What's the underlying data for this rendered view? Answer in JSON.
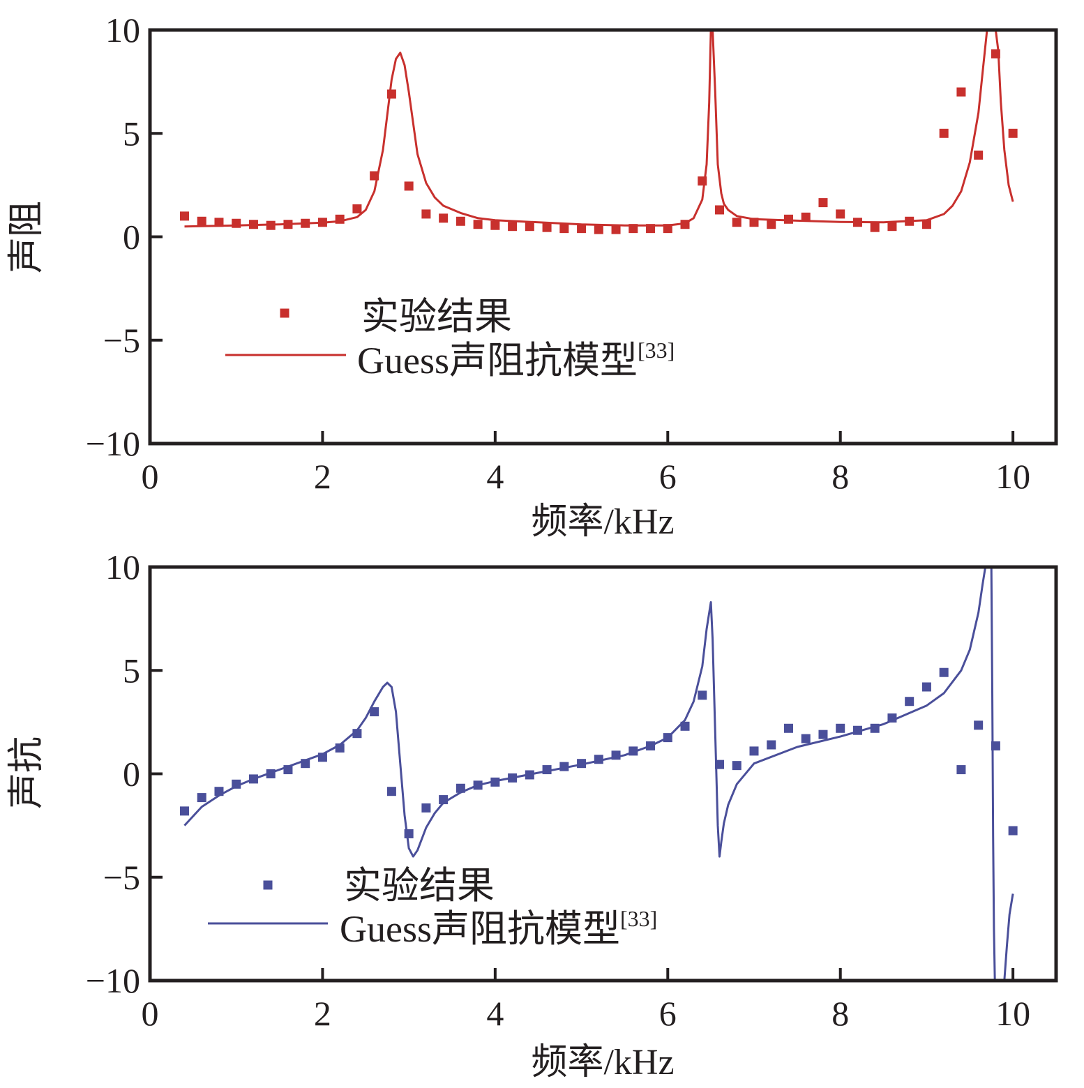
{
  "chart_data": [
    {
      "type": "scatter",
      "title": "",
      "xlabel": "频率/kHz",
      "ylabel": "声阻",
      "xlim": [
        0,
        10.5
      ],
      "ylim": [
        -10,
        10
      ],
      "xticks": [
        "0",
        "2",
        "4",
        "6",
        "8",
        "10"
      ],
      "yticks": [
        "−10",
        "−5",
        "0",
        "5",
        "10"
      ],
      "grid": false,
      "legend_position": "lower-left",
      "color": "#c8302d",
      "series": [
        {
          "name": "实验结果",
          "kind": "markers",
          "x": [
            0.4,
            0.6,
            0.8,
            1.0,
            1.2,
            1.4,
            1.6,
            1.8,
            2.0,
            2.2,
            2.4,
            2.6,
            2.8,
            3.0,
            3.2,
            3.4,
            3.6,
            3.8,
            4.0,
            4.2,
            4.4,
            4.6,
            4.8,
            5.0,
            5.2,
            5.4,
            5.6,
            5.8,
            6.0,
            6.2,
            6.4,
            6.6,
            6.8,
            7.0,
            7.2,
            7.4,
            7.6,
            7.8,
            8.0,
            8.2,
            8.4,
            8.6,
            8.8,
            9.0,
            9.2,
            9.4,
            9.6,
            9.8,
            10.0
          ],
          "y": [
            1.0,
            0.75,
            0.7,
            0.65,
            0.6,
            0.55,
            0.6,
            0.65,
            0.7,
            0.85,
            1.35,
            2.95,
            6.9,
            2.45,
            1.1,
            0.9,
            0.75,
            0.6,
            0.55,
            0.5,
            0.5,
            0.45,
            0.4,
            0.4,
            0.35,
            0.35,
            0.4,
            0.4,
            0.4,
            0.6,
            2.7,
            1.3,
            0.7,
            0.7,
            0.6,
            0.85,
            0.95,
            1.65,
            1.1,
            0.7,
            0.45,
            0.5,
            0.75,
            0.6,
            5.0,
            7.0,
            3.95,
            8.85,
            5.0
          ]
        },
        {
          "name": "Guess声阻抗模型",
          "citation": "[33]",
          "kind": "line",
          "x": [
            0.4,
            1.0,
            1.5,
            2.0,
            2.2,
            2.4,
            2.5,
            2.6,
            2.7,
            2.8,
            2.85,
            2.9,
            2.95,
            3.0,
            3.05,
            3.1,
            3.2,
            3.3,
            3.4,
            3.6,
            3.8,
            4.0,
            5.0,
            5.5,
            6.0,
            6.2,
            6.3,
            6.4,
            6.45,
            6.48,
            6.5,
            6.52,
            6.55,
            6.58,
            6.62,
            6.65,
            6.7,
            6.8,
            7.0,
            7.5,
            8.0,
            8.5,
            9.0,
            9.2,
            9.3,
            9.4,
            9.5,
            9.6,
            9.65,
            9.7,
            9.73,
            9.76,
            9.8,
            9.83,
            9.86,
            9.9,
            9.95,
            10.0
          ],
          "y": [
            0.5,
            0.55,
            0.6,
            0.68,
            0.75,
            0.95,
            1.3,
            2.2,
            4.2,
            7.6,
            8.6,
            8.9,
            8.3,
            7.0,
            5.5,
            4.0,
            2.6,
            1.9,
            1.5,
            1.15,
            0.9,
            0.8,
            0.6,
            0.55,
            0.55,
            0.65,
            0.9,
            1.8,
            3.5,
            6.5,
            10.0,
            10.0,
            7.0,
            3.5,
            2.1,
            1.6,
            1.3,
            1.0,
            0.85,
            0.78,
            0.72,
            0.7,
            0.8,
            1.1,
            1.5,
            2.2,
            3.6,
            6.0,
            8.0,
            10.0,
            10.0,
            10.0,
            10.0,
            9.0,
            6.5,
            4.2,
            2.5,
            1.7
          ]
        }
      ]
    },
    {
      "type": "scatter",
      "title": "",
      "xlabel": "频率/kHz",
      "ylabel": "声抗",
      "xlim": [
        0,
        10.5
      ],
      "ylim": [
        -10,
        10
      ],
      "xticks": [
        "0",
        "2",
        "4",
        "6",
        "8",
        "10"
      ],
      "yticks": [
        "−10",
        "−5",
        "0",
        "5",
        "10"
      ],
      "grid": false,
      "legend_position": "lower-left",
      "color": "#4a4f9a",
      "series": [
        {
          "name": "实验结果",
          "kind": "markers",
          "x": [
            0.4,
            0.6,
            0.8,
            1.0,
            1.2,
            1.4,
            1.6,
            1.8,
            2.0,
            2.2,
            2.4,
            2.6,
            2.8,
            3.0,
            3.2,
            3.4,
            3.6,
            3.8,
            4.0,
            4.2,
            4.4,
            4.6,
            4.8,
            5.0,
            5.2,
            5.4,
            5.6,
            5.8,
            6.0,
            6.2,
            6.4,
            6.6,
            6.8,
            7.0,
            7.2,
            7.4,
            7.6,
            7.8,
            8.0,
            8.2,
            8.4,
            8.6,
            8.8,
            9.0,
            9.2,
            9.4,
            9.6,
            9.8,
            10.0
          ],
          "y": [
            -1.8,
            -1.15,
            -0.85,
            -0.5,
            -0.25,
            0.0,
            0.2,
            0.5,
            0.8,
            1.25,
            1.95,
            3.0,
            -0.85,
            -2.9,
            -1.65,
            -1.25,
            -0.7,
            -0.55,
            -0.4,
            -0.2,
            -0.05,
            0.2,
            0.35,
            0.5,
            0.7,
            0.9,
            1.1,
            1.35,
            1.75,
            2.3,
            3.8,
            0.45,
            0.4,
            1.1,
            1.4,
            2.2,
            1.7,
            1.9,
            2.2,
            2.1,
            2.2,
            2.7,
            3.5,
            4.2,
            4.9,
            0.2,
            2.35,
            1.35,
            -2.75
          ]
        },
        {
          "name": "Guess声阻抗模型",
          "citation": "[33]",
          "kind": "line",
          "segments": [
            {
              "x": [
                0.4,
                0.6,
                0.8,
                1.0,
                1.2,
                1.4,
                1.6,
                1.8,
                2.0,
                2.2,
                2.4,
                2.5,
                2.6,
                2.7,
                2.75,
                2.8,
                2.85,
                2.9,
                2.95,
                3.0,
                3.05,
                3.1,
                3.2,
                3.3,
                3.4,
                3.6,
                3.8,
                4.0,
                4.5,
                5.0,
                5.5,
                5.8,
                6.0,
                6.2,
                6.3,
                6.4,
                6.45,
                6.5,
                6.52,
                6.55,
                6.58,
                6.6,
                6.62,
                6.65,
                6.7,
                6.8,
                7.0,
                7.5,
                8.0,
                8.5,
                9.0,
                9.2,
                9.4,
                9.5,
                9.6,
                9.65,
                9.68
              ],
              "y": [
                -2.5,
                -1.6,
                -1.05,
                -0.6,
                -0.25,
                0.05,
                0.35,
                0.65,
                0.95,
                1.4,
                2.1,
                2.7,
                3.5,
                4.2,
                4.4,
                4.2,
                3.0,
                0.5,
                -2.0,
                -3.6,
                -4.0,
                -3.7,
                -2.6,
                -1.9,
                -1.4,
                -0.9,
                -0.55,
                -0.35,
                0.05,
                0.45,
                0.9,
                1.35,
                1.75,
                2.6,
                3.5,
                5.2,
                7.0,
                8.3,
                6.5,
                2.0,
                -2.5,
                -4.0,
                -3.3,
                -2.4,
                -1.5,
                -0.5,
                0.5,
                1.3,
                1.8,
                2.4,
                3.3,
                3.9,
                5.0,
                6.0,
                7.8,
                9.2,
                10.0
              ]
            },
            {
              "x": [
                9.75,
                9.76,
                9.77,
                9.78,
                9.79
              ],
              "y": [
                10.0,
                4.0,
                -3.0,
                -7.5,
                -10.0
              ]
            },
            {
              "x": [
                9.9,
                9.93,
                9.96,
                10.0
              ],
              "y": [
                -10.0,
                -8.3,
                -6.8,
                -5.8
              ]
            }
          ]
        }
      ]
    }
  ]
}
